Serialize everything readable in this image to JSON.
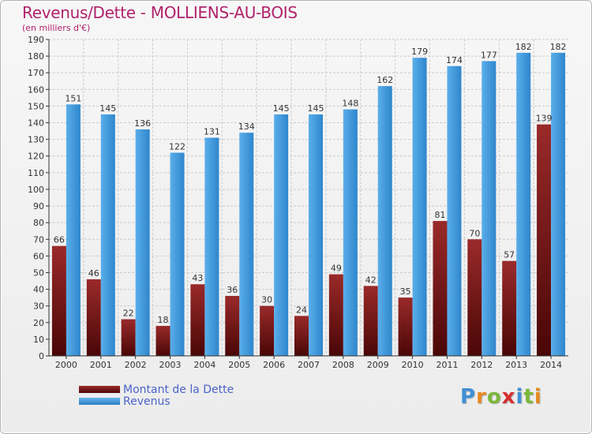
{
  "title": "Revenus/Dette - MOLLIENS-AU-BOIS",
  "subtitle": "(en milliers d'€)",
  "logo": {
    "letters": [
      "P",
      "r",
      "o",
      "x",
      "i",
      "t",
      "i"
    ],
    "colors": [
      "#3f8fd6",
      "#e58a1f",
      "#7bb73a",
      "#d62f2f",
      "#3f8fd6",
      "#7bb73a",
      "#e58a1f"
    ]
  },
  "colors": {
    "dette": "#8a1c1c",
    "revenus": "#3d98e0",
    "grid": "#cccccc",
    "axis": "#333333",
    "labels": "#333333"
  },
  "chart_data": {
    "type": "bar",
    "categories": [
      "2000",
      "2001",
      "2002",
      "2003",
      "2004",
      "2005",
      "2006",
      "2007",
      "2008",
      "2009",
      "2010",
      "2011",
      "2012",
      "2013",
      "2014"
    ],
    "series": [
      {
        "name": "Montant de la Dette",
        "values": [
          66,
          46,
          22,
          18,
          43,
          36,
          30,
          24,
          49,
          42,
          35,
          81,
          70,
          57,
          139
        ]
      },
      {
        "name": "Revenus",
        "values": [
          151,
          145,
          136,
          122,
          131,
          134,
          145,
          145,
          148,
          162,
          179,
          174,
          177,
          182,
          182
        ]
      }
    ],
    "ylim": [
      0,
      190
    ],
    "yticks": [
      0,
      10,
      20,
      30,
      40,
      50,
      60,
      70,
      80,
      90,
      100,
      110,
      120,
      130,
      140,
      150,
      160,
      170,
      180,
      190
    ],
    "grid": true,
    "legend": "bottom-left"
  }
}
